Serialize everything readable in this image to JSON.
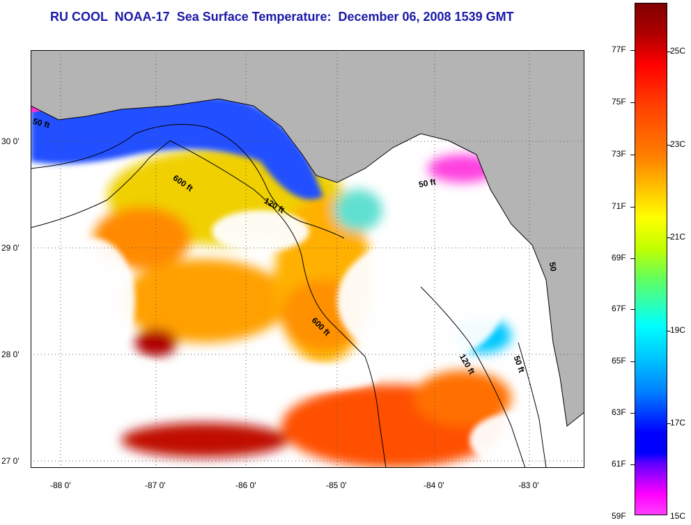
{
  "title": "RU COOL  NOAA-17  Sea Surface Temperature:  December 06, 2008 1539 GMT",
  "map": {
    "lat_labels": [
      "30 0'",
      "29 0'",
      "28 0'",
      "27 0'"
    ],
    "lon_labels": [
      "-88 0'",
      "-87 0'",
      "-86 0'",
      "-85 0'",
      "-84 0'",
      "-83 0'"
    ],
    "depth_labels": [
      "50 ft",
      "600 ft",
      "120 ft",
      "50 ft",
      "600 ft",
      "120 ft",
      "50 ft",
      "50"
    ]
  },
  "colorbar": {
    "f_labels": [
      "77F",
      "75F",
      "73F",
      "71F",
      "69F",
      "67F",
      "65F",
      "63F",
      "61F",
      "59F"
    ],
    "c_labels": [
      "25C",
      "23C",
      "21C",
      "19C",
      "17C",
      "15C"
    ]
  },
  "colors": {
    "title": "#1a1aa8",
    "land": "#b4b4b4",
    "cloud": "#ffffff"
  }
}
